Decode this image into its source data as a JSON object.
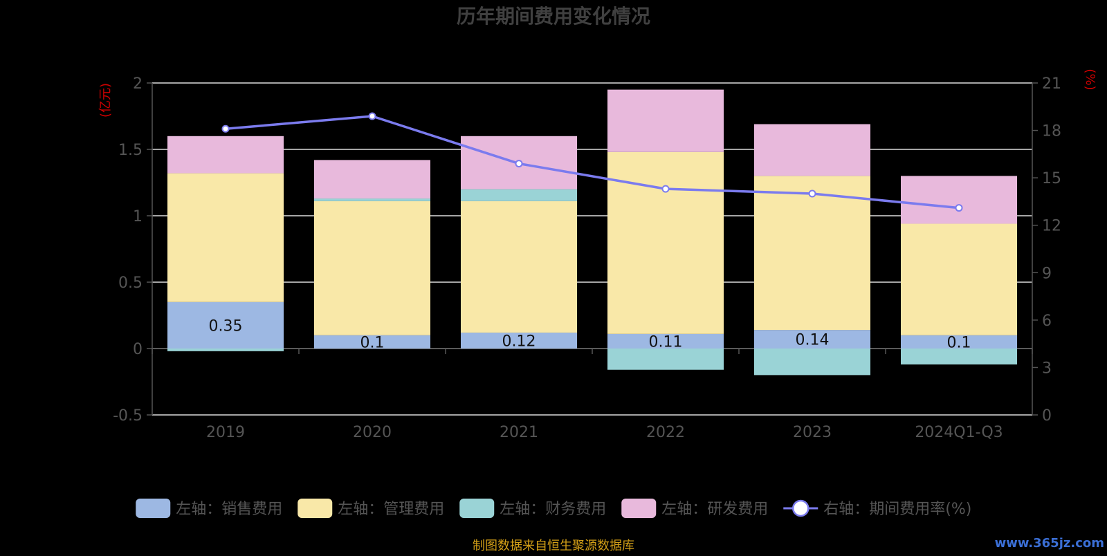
{
  "chart_data": {
    "type": "bar",
    "title": "历年期间费用变化情况",
    "left_axis_unit": "(亿元)",
    "right_axis_unit": "(%)",
    "categories": [
      "2019",
      "2020",
      "2021",
      "2022",
      "2023",
      "2024Q1-Q3"
    ],
    "left_axis": {
      "ylim": [
        -0.5,
        2
      ],
      "ticks": [
        -0.5,
        0,
        0.5,
        1,
        1.5,
        2
      ],
      "tick_labels": [
        "-0.5",
        "0",
        "0.5",
        "1",
        "1.5",
        "2"
      ]
    },
    "right_axis": {
      "ylim": [
        0,
        21
      ],
      "ticks": [
        0,
        3,
        6,
        9,
        12,
        15,
        18,
        21
      ],
      "tick_labels": [
        "0",
        "3",
        "6",
        "9",
        "12",
        "15",
        "18",
        "21"
      ]
    },
    "grid": true,
    "legend_position": "bottom",
    "series": [
      {
        "name": "左轴：销售费用",
        "type": "bar",
        "axis": "left",
        "color": "#9db8e3",
        "values": [
          0.35,
          0.1,
          0.12,
          0.11,
          0.14,
          0.1
        ],
        "data_labels": [
          "0.35",
          "0.1",
          "0.12",
          "0.11",
          "0.14",
          "0.1"
        ]
      },
      {
        "name": "左轴：管理费用",
        "type": "bar",
        "axis": "left",
        "color": "#f9e8a8",
        "values": [
          0.97,
          1.01,
          0.99,
          1.37,
          1.16,
          0.84
        ]
      },
      {
        "name": "左轴：财务费用",
        "type": "bar",
        "axis": "left",
        "color": "#9ad3d6",
        "values": [
          -0.02,
          0.02,
          0.09,
          -0.16,
          -0.2,
          -0.12
        ]
      },
      {
        "name": "左轴：研发费用",
        "type": "bar",
        "axis": "left",
        "color": "#e8b9dc",
        "values": [
          0.28,
          0.29,
          0.4,
          0.47,
          0.39,
          0.36
        ]
      },
      {
        "name": "右轴：期间费用率(%)",
        "type": "line",
        "axis": "right",
        "color": "#7b7bee",
        "values": [
          18.1,
          18.9,
          15.9,
          14.3,
          14.0,
          13.1
        ]
      }
    ]
  },
  "footer": {
    "source": "制图数据来自恒生聚源数据库",
    "watermark": "www.365jz.com"
  },
  "colors": {
    "background": "#000000",
    "title": "#404040",
    "axis_text": "#555555",
    "unit_text": "#d00000",
    "grid": "#dddddd",
    "line": "#7b7bee",
    "footer": "#d4a017",
    "watermark": "#3b6fd6"
  }
}
